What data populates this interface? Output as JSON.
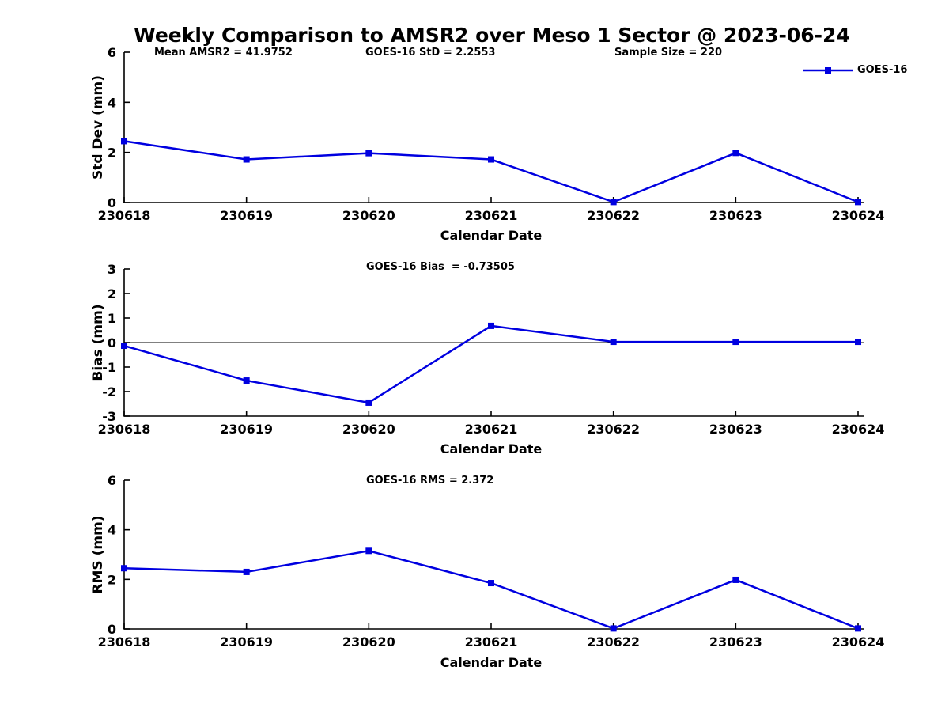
{
  "title": "Weekly Comparison to AMSR2 over Meso 1 Sector @ 2023-06-24",
  "legend": {
    "label": "GOES-16"
  },
  "colors": {
    "series": "#0000e0",
    "axis": "#000000",
    "text": "#000000"
  },
  "categories": [
    "230618",
    "230619",
    "230620",
    "230621",
    "230622",
    "230623",
    "230624"
  ],
  "chart_data": [
    {
      "type": "line",
      "name": "std-dev",
      "series_name": "GOES-16",
      "ylabel": "Std Dev (mm)",
      "xlabel": "Calendar Date",
      "ylim": [
        0,
        6
      ],
      "yticks": [
        0,
        2,
        4,
        6
      ],
      "categories": [
        "230618",
        "230619",
        "230620",
        "230621",
        "230622",
        "230623",
        "230624"
      ],
      "values": [
        2.45,
        1.72,
        1.97,
        1.72,
        0.02,
        1.98,
        0.02
      ],
      "legend_position": "upper right",
      "annotations": [
        {
          "text": "Mean AMSR2 = 41.9752"
        },
        {
          "text": "GOES-16 StD = 2.2553"
        },
        {
          "text": "Sample Size = 220"
        }
      ]
    },
    {
      "type": "line",
      "name": "bias",
      "series_name": "GOES-16",
      "ylabel": "Bias (mm)",
      "xlabel": "Calendar Date",
      "ylim": [
        -3,
        3
      ],
      "yticks": [
        -3,
        -2,
        -1,
        0,
        1,
        2,
        3
      ],
      "zero_line": true,
      "categories": [
        "230618",
        "230619",
        "230620",
        "230621",
        "230622",
        "230623",
        "230624"
      ],
      "values": [
        -0.13,
        -1.55,
        -2.45,
        0.68,
        0.03,
        0.03,
        0.03
      ],
      "annotations": [
        {
          "text": "GOES-16 Bias  = -0.73505"
        }
      ]
    },
    {
      "type": "line",
      "name": "rms",
      "series_name": "GOES-16",
      "ylabel": "RMS (mm)",
      "xlabel": "Calendar Date",
      "ylim": [
        0,
        6
      ],
      "yticks": [
        0,
        2,
        4,
        6
      ],
      "categories": [
        "230618",
        "230619",
        "230620",
        "230621",
        "230622",
        "230623",
        "230624"
      ],
      "values": [
        2.45,
        2.3,
        3.15,
        1.85,
        0.02,
        1.98,
        0.02
      ],
      "annotations": [
        {
          "text": "GOES-16 RMS = 2.372"
        }
      ]
    }
  ]
}
